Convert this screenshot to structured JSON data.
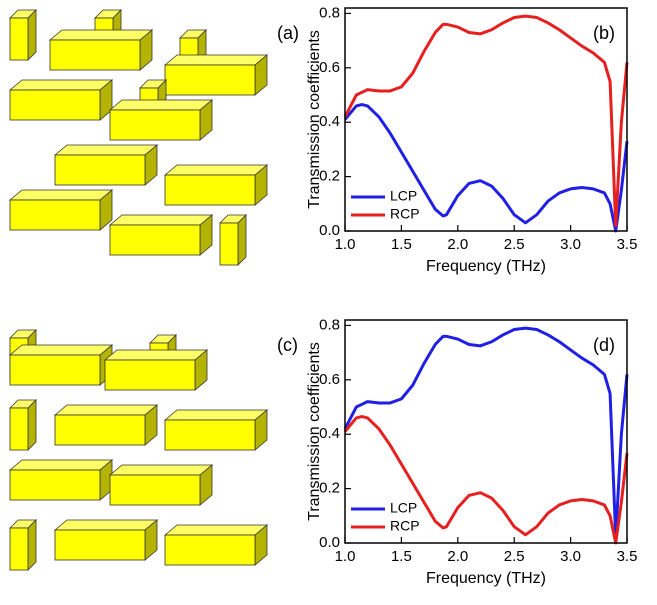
{
  "figure": {
    "panel_labels": [
      "(a)",
      "(c)"
    ]
  },
  "chart_data": [
    {
      "type": "line",
      "panel_label": "(b)",
      "xlabel": "Frequency (THz)",
      "ylabel": "Transmission coefficients",
      "x": [
        1.0,
        1.1,
        1.15,
        1.2,
        1.3,
        1.4,
        1.5,
        1.6,
        1.7,
        1.8,
        1.87,
        1.9,
        2.0,
        2.1,
        2.2,
        2.3,
        2.4,
        2.5,
        2.6,
        2.7,
        2.8,
        2.9,
        3.0,
        3.1,
        3.2,
        3.3,
        3.35,
        3.4,
        3.45,
        3.5
      ],
      "series": [
        {
          "name": "LCP",
          "color": "#1f1fe6",
          "values": [
            0.41,
            0.46,
            0.465,
            0.46,
            0.42,
            0.36,
            0.29,
            0.22,
            0.15,
            0.08,
            0.055,
            0.06,
            0.13,
            0.175,
            0.185,
            0.165,
            0.12,
            0.06,
            0.03,
            0.06,
            0.11,
            0.14,
            0.155,
            0.16,
            0.155,
            0.14,
            0.1,
            0.0,
            0.15,
            0.33
          ]
        },
        {
          "name": "RCP",
          "color": "#e61f1f",
          "values": [
            0.42,
            0.5,
            0.51,
            0.52,
            0.515,
            0.515,
            0.53,
            0.58,
            0.66,
            0.73,
            0.76,
            0.76,
            0.75,
            0.73,
            0.725,
            0.74,
            0.765,
            0.785,
            0.79,
            0.785,
            0.765,
            0.74,
            0.71,
            0.68,
            0.655,
            0.62,
            0.55,
            0.02,
            0.4,
            0.62
          ]
        }
      ],
      "xlim": [
        1.0,
        3.5
      ],
      "ylim": [
        0,
        0.82
      ],
      "xticks": [
        {
          "value": 1.0,
          "label": "1.0"
        },
        1.5,
        {
          "value": 2.0,
          "label": "2.0"
        },
        2.5,
        {
          "value": 3.0,
          "label": "3.0"
        },
        3.5
      ],
      "yticks": [
        {
          "value": 0,
          "label": "0.0"
        },
        0.2,
        0.4,
        0.6,
        0.8
      ],
      "legend": "lower left"
    },
    {
      "type": "line",
      "panel_label": "(d)",
      "xlabel": "Frequency (THz)",
      "ylabel": "Transmission coefficients",
      "x": [
        1.0,
        1.1,
        1.15,
        1.2,
        1.3,
        1.4,
        1.5,
        1.6,
        1.7,
        1.8,
        1.87,
        1.9,
        2.0,
        2.1,
        2.2,
        2.3,
        2.4,
        2.5,
        2.6,
        2.7,
        2.8,
        2.9,
        3.0,
        3.1,
        3.2,
        3.3,
        3.35,
        3.4,
        3.45,
        3.5
      ],
      "series": [
        {
          "name": "LCP",
          "color": "#1f1fe6",
          "values": [
            0.42,
            0.5,
            0.51,
            0.52,
            0.515,
            0.515,
            0.53,
            0.58,
            0.66,
            0.73,
            0.76,
            0.76,
            0.75,
            0.73,
            0.725,
            0.74,
            0.765,
            0.785,
            0.79,
            0.785,
            0.765,
            0.74,
            0.71,
            0.68,
            0.655,
            0.62,
            0.55,
            0.02,
            0.4,
            0.62
          ]
        },
        {
          "name": "RCP",
          "color": "#e61f1f",
          "values": [
            0.41,
            0.46,
            0.465,
            0.46,
            0.42,
            0.36,
            0.29,
            0.22,
            0.15,
            0.08,
            0.055,
            0.06,
            0.13,
            0.175,
            0.185,
            0.165,
            0.12,
            0.06,
            0.03,
            0.06,
            0.11,
            0.14,
            0.155,
            0.16,
            0.155,
            0.14,
            0.1,
            0.0,
            0.15,
            0.33
          ]
        }
      ],
      "xlim": [
        1.0,
        3.5
      ],
      "ylim": [
        0,
        0.82
      ],
      "xticks": [
        {
          "value": 1.0,
          "label": "1.0"
        },
        1.5,
        {
          "value": 2.0,
          "label": "2.0"
        },
        2.5,
        {
          "value": 3.0,
          "label": "3.0"
        },
        3.5
      ],
      "yticks": [
        {
          "value": 0,
          "label": "0.0"
        },
        0.2,
        0.4,
        0.6,
        0.8
      ],
      "legend": "lower left"
    }
  ]
}
